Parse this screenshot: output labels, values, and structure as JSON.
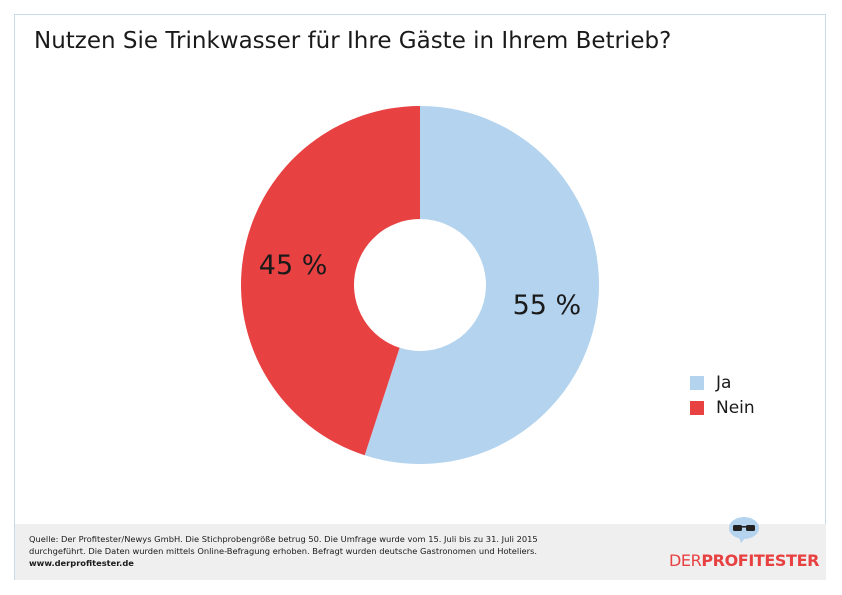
{
  "title": "Nutzen Sie Trinkwasser für Ihre Gäste in Ihrem Betrieb?",
  "colors": {
    "ja": "#b3d3ee",
    "nein": "#e84142",
    "footer_bg": "#efefef",
    "frame_border": "#c8dce8",
    "brand": "#e84142"
  },
  "chart_data": {
    "type": "pie",
    "subtype": "donut",
    "categories": [
      "Ja",
      "Nein"
    ],
    "values": [
      55,
      45
    ],
    "unit": "%",
    "data_labels": [
      "55 %",
      "45 %"
    ],
    "legend": [
      "Ja",
      "Nein"
    ],
    "legend_position": "right",
    "title": "Nutzen Sie Trinkwasser für Ihre Gäste in Ihrem Betrieb?"
  },
  "footer": {
    "source_line1": "Quelle: Der Profitester/Newys GmbH. Die Stichprobengröße betrug 50. Die Umfrage wurde vom 15. Juli bis zu 31. Juli 2015",
    "source_line2": "durchgeführt. Die Daten wurden mittels Online-Befragung erhoben. Befragt wurden deutsche Gastronomen und Hoteliers.",
    "url": "www.derprofitester.de"
  },
  "logo": {
    "text_light": "DER",
    "text_bold": "PROFITESTER",
    "icon": "glasses-speech-bubble-icon"
  }
}
